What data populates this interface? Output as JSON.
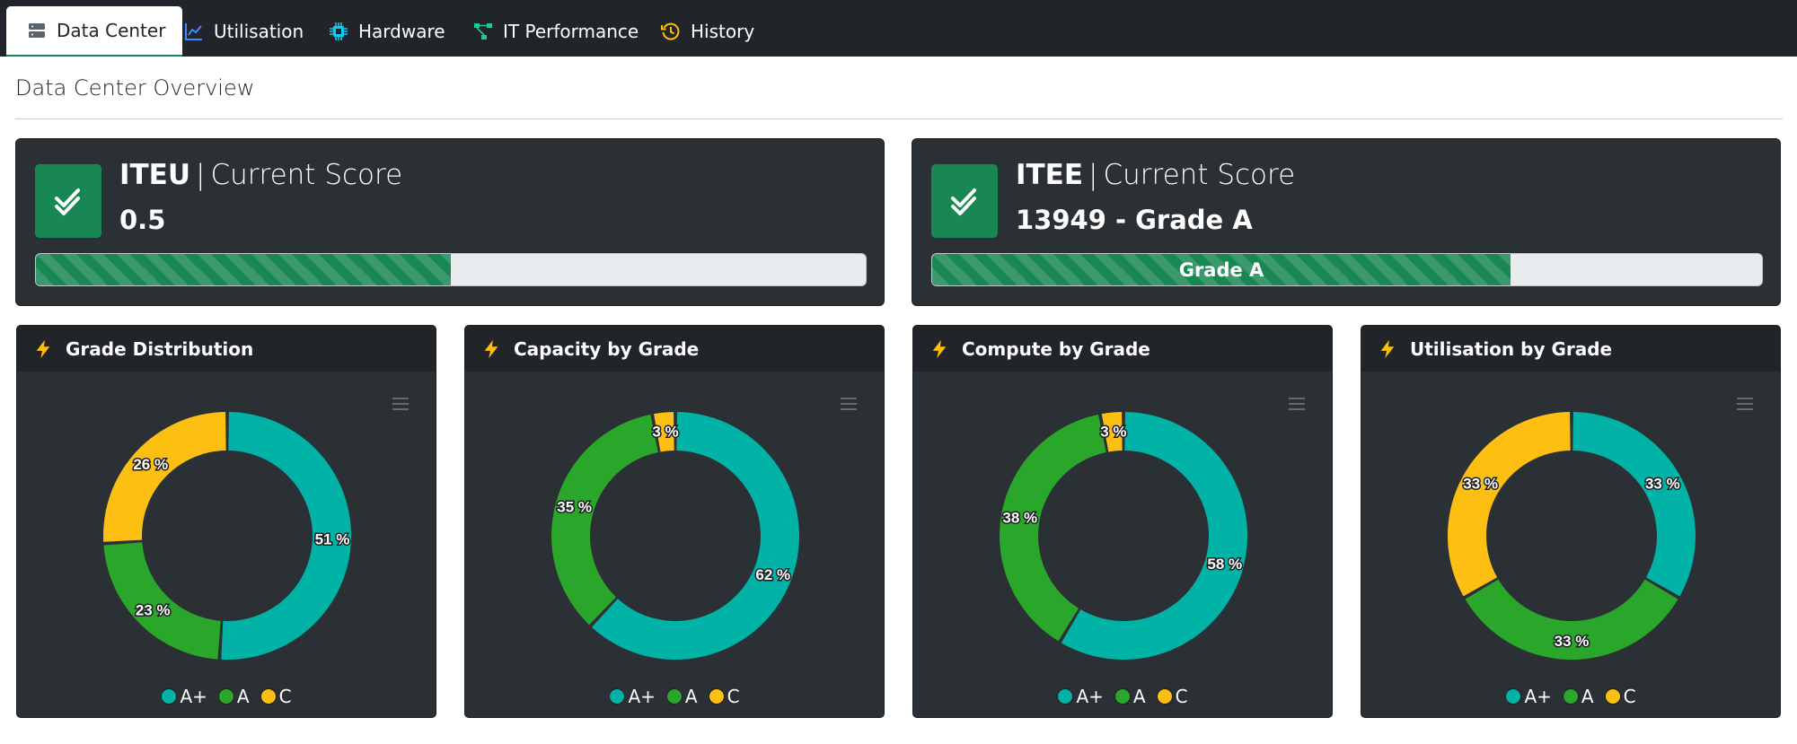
{
  "nav": {
    "tabs": [
      {
        "label": "Data Center",
        "icon": "server-icon",
        "active": true
      },
      {
        "label": "Utilisation",
        "icon": "line-chart-icon",
        "active": false
      },
      {
        "label": "Hardware",
        "icon": "cpu-icon",
        "active": false
      },
      {
        "label": "IT Performance",
        "icon": "diagram-icon",
        "active": false
      },
      {
        "label": "History",
        "icon": "history-icon",
        "active": false
      }
    ]
  },
  "page": {
    "title": "Data Center Overview"
  },
  "scores": [
    {
      "metric": "ITEU",
      "caption": "Current Score",
      "value": "0.5",
      "progress_fraction": 0.5,
      "bar_label": ""
    },
    {
      "metric": "ITEE",
      "caption": "Current Score",
      "value": "13949 - Grade A",
      "progress_fraction": 0.697,
      "bar_label": "Grade A"
    }
  ],
  "colors": {
    "A+": "#00b3a6",
    "A": "#2aa62a",
    "C": "#fcbf12",
    "success": "#198754"
  },
  "chart_data": [
    {
      "type": "pie",
      "title": "Grade Distribution",
      "categories": [
        "A+",
        "A",
        "C"
      ],
      "values": [
        51,
        23,
        26
      ],
      "unit": "%"
    },
    {
      "type": "pie",
      "title": "Capacity by Grade",
      "categories": [
        "A+",
        "A",
        "C"
      ],
      "values": [
        62,
        35,
        3
      ],
      "unit": "%"
    },
    {
      "type": "pie",
      "title": "Compute by Grade",
      "categories": [
        "A+",
        "A",
        "C"
      ],
      "values": [
        58,
        38,
        3
      ],
      "unit": "%"
    },
    {
      "type": "pie",
      "title": "Utilisation by Grade",
      "categories": [
        "A+",
        "A",
        "C"
      ],
      "values": [
        33,
        33,
        33
      ],
      "unit": "%"
    }
  ]
}
